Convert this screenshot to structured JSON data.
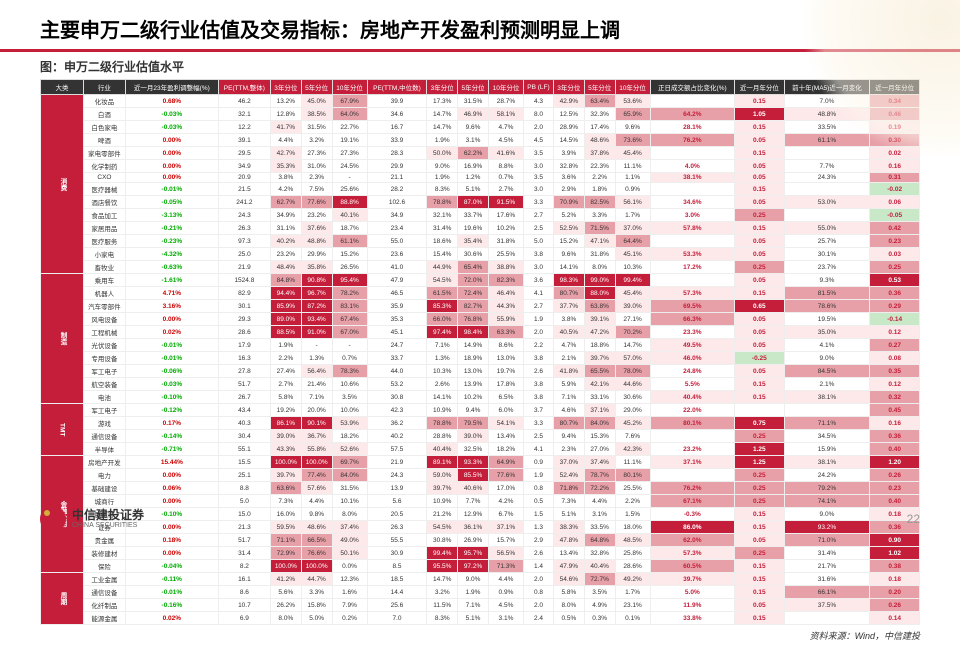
{
  "title": "主要申万二级行业估值及交易指标：房地产开发盈利预测明显上调",
  "subtitle": "图：申万二级行业估值水平",
  "source": "资料来源：Wind，中信建投",
  "logo_cn": "中信建投证券",
  "logo_en": "CHINA SECURITIES",
  "page": "22",
  "headers": [
    "大类",
    "行业",
    "近一月23年盈利调整幅(%)",
    "PE(TTM,整体)",
    "3年分位",
    "5年分位",
    "10年分位",
    "PE(TTM,中位数)",
    "3年分位",
    "5年分位",
    "10年分位",
    "PB (LF)",
    "3年分位",
    "5年分位",
    "10年分位",
    "正日成交额占比变化(%)",
    "近一月年分位",
    "前十年(MA5)近一月变化",
    "近一月年分位"
  ],
  "hdr_dark": [
    0,
    1,
    2,
    15,
    16,
    17,
    18
  ],
  "groups": [
    {
      "name": "消费",
      "rows": [
        [
          "化妆品",
          "0.68%",
          "46.2",
          "13.2%",
          "45.0%",
          "67.9%",
          "39.9",
          "17.3%",
          "31.5%",
          "28.7%",
          "4.3",
          "42.9%",
          "63.4%",
          "53.6%",
          "",
          "0.15",
          "7.0%",
          "0.34"
        ],
        [
          "白酒",
          "-0.03%",
          "32.1",
          "12.8%",
          "38.5%",
          "64.0%",
          "34.6",
          "14.7%",
          "46.9%",
          "58.1%",
          "8.0",
          "12.5%",
          "32.3%",
          "65.9%",
          "64.2%",
          "1.05",
          "48.8%",
          "0.46"
        ],
        [
          "白色家电",
          "-0.03%",
          "12.2",
          "41.7%",
          "31.5%",
          "22.7%",
          "16.7",
          "14.7%",
          "9.6%",
          "4.7%",
          "2.0",
          "28.9%",
          "17.4%",
          "9.6%",
          "28.1%",
          "0.15",
          "33.5%",
          "0.19"
        ],
        [
          "啤酒",
          "0.00%",
          "39.1",
          "4.4%",
          "3.2%",
          "19.1%",
          "33.9",
          "1.9%",
          "3.1%",
          "4.5%",
          "4.5",
          "14.5%",
          "48.6%",
          "73.6%",
          "76.2%",
          "0.05",
          "61.1%",
          "0.30"
        ],
        [
          "家电零部件",
          "0.00%",
          "29.5",
          "42.7%",
          "27.3%",
          "27.3%",
          "28.3",
          "50.0%",
          "62.2%",
          "41.6%",
          "3.5",
          "3.9%",
          "37.8%",
          "45.4%",
          "",
          "0.15",
          "",
          "0.02"
        ],
        [
          "化学制药",
          "0.00%",
          "34.9",
          "35.3%",
          "31.0%",
          "24.5%",
          "29.9",
          "9.0%",
          "16.9%",
          "8.8%",
          "3.0",
          "32.8%",
          "22.3%",
          "11.1%",
          "4.0%",
          "0.05",
          "7.7%",
          "0.16"
        ],
        [
          "CXO",
          "0.00%",
          "20.9",
          "3.8%",
          "2.3%",
          "-",
          "21.1",
          "1.9%",
          "1.2%",
          "0.7%",
          "3.5",
          "3.6%",
          "2.2%",
          "1.1%",
          "38.1%",
          "0.05",
          "24.3%",
          "0.31"
        ],
        [
          "医疗器械",
          "-0.01%",
          "21.5",
          "4.2%",
          "7.5%",
          "25.6%",
          "28.2",
          "8.3%",
          "5.1%",
          "2.7%",
          "3.0",
          "2.9%",
          "1.8%",
          "0.9%",
          "",
          "0.15",
          "",
          "-0.02"
        ],
        [
          "酒店餐饮",
          "-0.05%",
          "241.2",
          "62.7%",
          "77.6%",
          "88.8%",
          "102.6",
          "78.8%",
          "87.0%",
          "91.5%",
          "3.3",
          "70.9%",
          "82.5%",
          "56.1%",
          "34.6%",
          "0.05",
          "53.0%",
          "0.06"
        ],
        [
          "食品加工",
          "-3.13%",
          "24.3",
          "34.9%",
          "23.2%",
          "40.1%",
          "34.9",
          "32.1%",
          "33.7%",
          "17.6%",
          "2.7",
          "5.2%",
          "3.3%",
          "1.7%",
          "3.0%",
          "0.25",
          "",
          "-0.05"
        ],
        [
          "家居用品",
          "-0.21%",
          "26.3",
          "31.1%",
          "37.6%",
          "18.7%",
          "23.4",
          "31.4%",
          "19.6%",
          "10.2%",
          "2.5",
          "52.5%",
          "71.5%",
          "37.0%",
          "57.8%",
          "0.15",
          "55.0%",
          "0.42"
        ],
        [
          "医疗服务",
          "-0.23%",
          "97.3",
          "40.2%",
          "48.8%",
          "61.1%",
          "55.0",
          "18.6%",
          "35.4%",
          "31.8%",
          "5.0",
          "15.2%",
          "47.1%",
          "64.4%",
          "",
          "0.05",
          "25.7%",
          "0.23"
        ],
        [
          "小家电",
          "-4.32%",
          "25.0",
          "23.2%",
          "29.9%",
          "15.2%",
          "23.6",
          "15.4%",
          "30.6%",
          "25.5%",
          "3.8",
          "9.6%",
          "31.8%",
          "45.1%",
          "53.3%",
          "0.05",
          "30.1%",
          "0.03"
        ],
        [
          "畜牧业",
          "-0.63%",
          "21.9",
          "48.4%",
          "35.8%",
          "26.5%",
          "41.0",
          "44.9%",
          "65.4%",
          "38.8%",
          "3.0",
          "14.1%",
          "8.0%",
          "10.3%",
          "17.2%",
          "0.25",
          "23.7%",
          "0.25"
        ]
      ]
    },
    {
      "name": "制造",
      "rows": [
        [
          "乘用车",
          "-1.61%",
          "1524.8",
          "84.8%",
          "90.8%",
          "95.4%",
          "47.9",
          "54.5%",
          "72.0%",
          "82.3%",
          "3.6",
          "98.3%",
          "99.0%",
          "99.4%",
          "",
          "0.05",
          "9.3%",
          "0.53"
        ],
        [
          "机器人",
          "4.71%",
          "82.9",
          "94.4%",
          "96.7%",
          "78.2%",
          "46.5",
          "61.5%",
          "72.4%",
          "46.4%",
          "4.1",
          "80.7%",
          "88.0%",
          "45.4%",
          "57.3%",
          "0.15",
          "81.5%",
          "0.36"
        ],
        [
          "汽车零部件",
          "3.16%",
          "30.1",
          "85.9%",
          "87.2%",
          "83.1%",
          "35.9",
          "85.3%",
          "82.7%",
          "44.3%",
          "2.7",
          "37.7%",
          "63.8%",
          "39.0%",
          "69.5%",
          "0.65",
          "78.6%",
          "0.29"
        ],
        [
          "风电设备",
          "0.00%",
          "29.3",
          "89.0%",
          "93.4%",
          "67.4%",
          "35.3",
          "66.0%",
          "76.8%",
          "55.9%",
          "1.9",
          "3.8%",
          "39.1%",
          "27.1%",
          "66.3%",
          "0.05",
          "19.5%",
          "-0.14"
        ],
        [
          "工程机械",
          "0.02%",
          "28.6",
          "88.5%",
          "91.0%",
          "67.0%",
          "45.1",
          "97.4%",
          "98.4%",
          "63.3%",
          "2.0",
          "40.5%",
          "47.2%",
          "70.2%",
          "23.3%",
          "0.05",
          "35.0%",
          "0.12"
        ],
        [
          "光伏设备",
          "-0.01%",
          "17.9",
          "1.9%",
          "-",
          "-",
          "24.7",
          "7.1%",
          "14.9%",
          "8.6%",
          "2.2",
          "4.7%",
          "18.8%",
          "14.7%",
          "49.5%",
          "0.05",
          "4.1%",
          "0.27"
        ],
        [
          "专用设备",
          "-0.01%",
          "16.3",
          "2.2%",
          "1.3%",
          "0.7%",
          "33.7",
          "1.3%",
          "18.9%",
          "13.0%",
          "3.8",
          "2.1%",
          "39.7%",
          "57.0%",
          "46.0%",
          "-0.25",
          "9.0%",
          "0.08"
        ],
        [
          "军工电子",
          "-0.06%",
          "27.8",
          "27.4%",
          "56.4%",
          "78.3%",
          "44.0",
          "10.3%",
          "13.0%",
          "19.7%",
          "2.6",
          "41.8%",
          "65.5%",
          "78.0%",
          "24.8%",
          "0.05",
          "84.5%",
          "0.35"
        ],
        [
          "航空装备",
          "-0.03%",
          "51.7",
          "2.7%",
          "21.4%",
          "10.6%",
          "53.2",
          "2.6%",
          "13.9%",
          "17.8%",
          "3.8",
          "5.9%",
          "42.1%",
          "44.6%",
          "5.5%",
          "0.15",
          "2.1%",
          "0.12"
        ],
        [
          "电池",
          "-0.10%",
          "26.7",
          "5.8%",
          "7.1%",
          "3.5%",
          "30.8",
          "14.1%",
          "10.2%",
          "6.5%",
          "3.8",
          "7.1%",
          "33.1%",
          "30.6%",
          "40.4%",
          "0.15",
          "38.1%",
          "0.32"
        ]
      ]
    },
    {
      "name": "TMT",
      "rows": [
        [
          "军工电子",
          "-0.12%",
          "43.4",
          "19.2%",
          "20.0%",
          "10.0%",
          "42.3",
          "10.9%",
          "9.4%",
          "6.0%",
          "3.7",
          "4.6%",
          "37.1%",
          "29.0%",
          "22.0%",
          "",
          "",
          "0.45"
        ],
        [
          "游戏",
          "0.17%",
          "40.3",
          "86.1%",
          "90.1%",
          "53.9%",
          "36.2",
          "78.8%",
          "79.5%",
          "54.1%",
          "3.3",
          "80.7%",
          "84.0%",
          "45.2%",
          "80.1%",
          "0.75",
          "71.1%",
          "0.16"
        ],
        [
          "通信设备",
          "-0.14%",
          "30.4",
          "39.0%",
          "36.7%",
          "18.2%",
          "40.2",
          "28.8%",
          "39.0%",
          "13.4%",
          "2.5",
          "9.4%",
          "15.3%",
          "7.6%",
          "",
          "0.25",
          "34.5%",
          "0.36"
        ],
        [
          "半导体",
          "-0.71%",
          "55.1",
          "43.3%",
          "55.8%",
          "52.6%",
          "57.5",
          "40.4%",
          "32.5%",
          "18.2%",
          "4.1",
          "2.3%",
          "27.0%",
          "42.3%",
          "23.2%",
          "1.25",
          "15.9%",
          "0.40"
        ]
      ]
    },
    {
      "name": "金融公用",
      "rows": [
        [
          "房地产开发",
          "15.44%",
          "15.5",
          "100.0%",
          "100.0%",
          "69.7%",
          "21.9",
          "89.1%",
          "93.3%",
          "64.9%",
          "0.9",
          "37.0%",
          "37.4%",
          "11.1%",
          "37.1%",
          "1.25",
          "38.1%",
          "1.20"
        ],
        [
          "电力",
          "0.00%",
          "25.1",
          "39.7%",
          "77.4%",
          "84.0%",
          "24.3",
          "59.0%",
          "85.5%",
          "77.6%",
          "1.9",
          "52.4%",
          "78.7%",
          "80.1%",
          "",
          "0.25",
          "24.2%",
          "0.26"
        ],
        [
          "基础建设",
          "0.06%",
          "8.8",
          "63.6%",
          "57.6%",
          "31.5%",
          "13.9",
          "39.7%",
          "40.6%",
          "17.0%",
          "0.8",
          "71.8%",
          "72.2%",
          "25.5%",
          "76.2%",
          "0.25",
          "79.2%",
          "0.23"
        ],
        [
          "城商行",
          "0.00%",
          "5.0",
          "7.3%",
          "4.4%",
          "10.1%",
          "5.6",
          "10.9%",
          "7.7%",
          "4.2%",
          "0.5",
          "7.3%",
          "4.4%",
          "2.2%",
          "67.1%",
          "0.25",
          "74.1%",
          "0.40"
        ],
        [
          "股份行",
          "-0.10%",
          "15.0",
          "16.0%",
          "9.8%",
          "8.0%",
          "20.5",
          "21.2%",
          "12.9%",
          "6.7%",
          "1.5",
          "5.1%",
          "3.1%",
          "1.5%",
          "-0.3%",
          "0.15",
          "9.0%",
          "0.18"
        ],
        [
          "证券",
          "0.00%",
          "21.3",
          "59.5%",
          "48.6%",
          "37.4%",
          "26.3",
          "54.5%",
          "36.1%",
          "37.1%",
          "1.3",
          "38.3%",
          "33.5%",
          "18.0%",
          "86.0%",
          "0.15",
          "93.2%",
          "0.36"
        ],
        [
          "贵金属",
          "0.18%",
          "51.7",
          "71.1%",
          "66.5%",
          "49.0%",
          "55.5",
          "30.8%",
          "26.9%",
          "15.7%",
          "2.9",
          "47.8%",
          "64.8%",
          "48.5%",
          "62.0%",
          "0.05",
          "71.0%",
          "0.90"
        ],
        [
          "装修建材",
          "0.00%",
          "31.4",
          "72.9%",
          "76.6%",
          "50.1%",
          "30.9",
          "99.4%",
          "95.7%",
          "56.5%",
          "2.6",
          "13.4%",
          "32.8%",
          "25.8%",
          "57.3%",
          "0.25",
          "31.4%",
          "1.02"
        ],
        [
          "保险",
          "-0.04%",
          "8.2",
          "100.0%",
          "100.0%",
          "0.0%",
          "8.5",
          "95.5%",
          "97.2%",
          "71.3%",
          "1.4",
          "47.9%",
          "40.4%",
          "28.6%",
          "60.5%",
          "0.15",
          "21.7%",
          "0.38"
        ]
      ]
    },
    {
      "name": "周期",
      "rows": [
        [
          "工业金属",
          "-0.11%",
          "16.1",
          "41.2%",
          "44.7%",
          "12.3%",
          "18.5",
          "14.7%",
          "9.0%",
          "4.4%",
          "2.0",
          "54.6%",
          "72.7%",
          "49.2%",
          "39.7%",
          "0.15",
          "31.6%",
          "0.18"
        ],
        [
          "通信设备",
          "-0.01%",
          "8.6",
          "5.6%",
          "3.3%",
          "1.6%",
          "14.4",
          "3.2%",
          "1.9%",
          "0.9%",
          "0.8",
          "5.8%",
          "3.5%",
          "1.7%",
          "5.0%",
          "0.15",
          "66.1%",
          "0.20"
        ],
        [
          "化纤制品",
          "-0.16%",
          "10.7",
          "26.2%",
          "15.8%",
          "7.9%",
          "25.6",
          "11.5%",
          "7.1%",
          "4.5%",
          "2.0",
          "8.0%",
          "4.9%",
          "23.1%",
          "11.9%",
          "0.05",
          "37.5%",
          "0.26"
        ],
        [
          "能源金属",
          "0.02%",
          "6.9",
          "8.0%",
          "5.0%",
          "0.2%",
          "7.0",
          "8.3%",
          "5.1%",
          "3.1%",
          "2.4",
          "0.5%",
          "0.3%",
          "0.1%",
          "33.8%",
          "0.15",
          "",
          "0.14"
        ]
      ]
    }
  ],
  "heat": {
    "red_max": "#c41e3a",
    "red_mid": "#e8a0a8",
    "red_low": "#fde8ea",
    "grn": "#c8e8c8"
  }
}
